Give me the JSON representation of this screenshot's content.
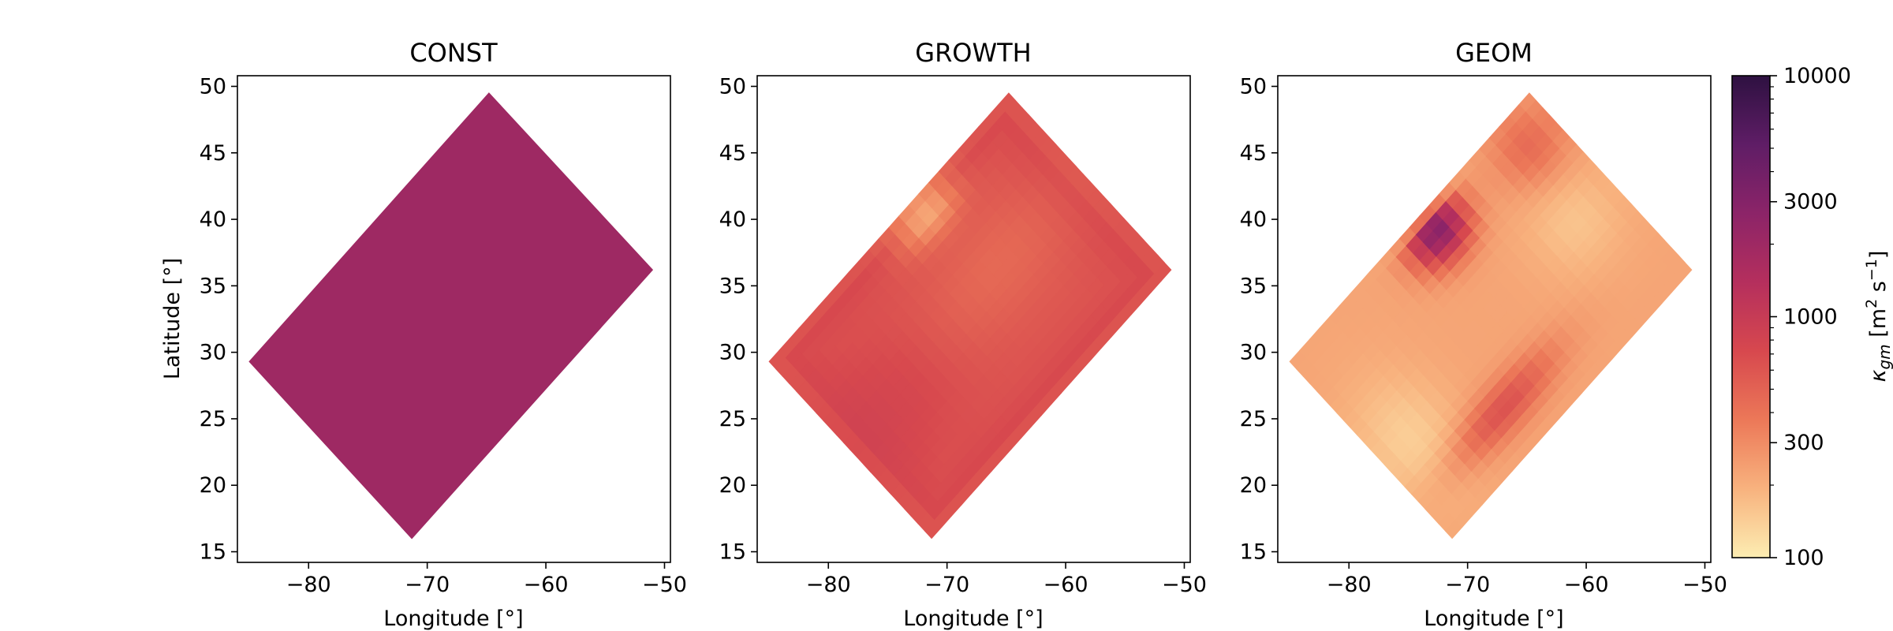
{
  "chart_data": {
    "type": "heatmap",
    "panels": [
      {
        "title": "CONST",
        "xlabel": "Longitude [°]",
        "ylabel": "Latitude [°]",
        "field": "const",
        "value": 2000
      },
      {
        "title": "GROWTH",
        "xlabel": "Longitude [°]",
        "ylabel": "",
        "field": "growth"
      },
      {
        "title": "GEOM",
        "xlabel": "Longitude [°]",
        "ylabel": "",
        "field": "geom"
      }
    ],
    "domain_corners": {
      "west": [
        -85,
        29.3
      ],
      "north": [
        -64.8,
        49.5
      ],
      "east": [
        -51,
        36.2
      ],
      "south": [
        -71.3,
        16
      ]
    },
    "xlim": [
      -86,
      -49.5
    ],
    "ylim": [
      14.2,
      50.8
    ],
    "xticks": [
      -80,
      -70,
      -60,
      -50
    ],
    "xtick_labels": [
      "−80",
      "−70",
      "−60",
      "−50"
    ],
    "yticks": [
      15,
      20,
      25,
      30,
      35,
      40,
      45,
      50
    ],
    "ytick_labels": [
      "15",
      "20",
      "25",
      "30",
      "35",
      "40",
      "45",
      "50"
    ],
    "colorbar": {
      "label": "κgm [m² s⁻¹]",
      "label_symbol": "κ",
      "label_sub": "gm",
      "label_units_open": "[m",
      "label_units_sq": "2",
      "label_units_s": "s",
      "label_units_inv": "−1",
      "label_units_close": "]",
      "scale": "log",
      "min": 100,
      "max": 10000,
      "ticks": [
        100,
        300,
        1000,
        3000,
        10000
      ],
      "tick_labels": [
        "100",
        "300",
        "1000",
        "3000",
        "10000"
      ],
      "colormap": "magma_r",
      "stops": [
        "#fcedb2",
        "#f8b27e",
        "#ec7858",
        "#d7484e",
        "#b52f5d",
        "#8c2468",
        "#5f1d66",
        "#2e1141"
      ]
    },
    "colors": {
      "background": "#ffffff",
      "axis": "#000000"
    }
  }
}
